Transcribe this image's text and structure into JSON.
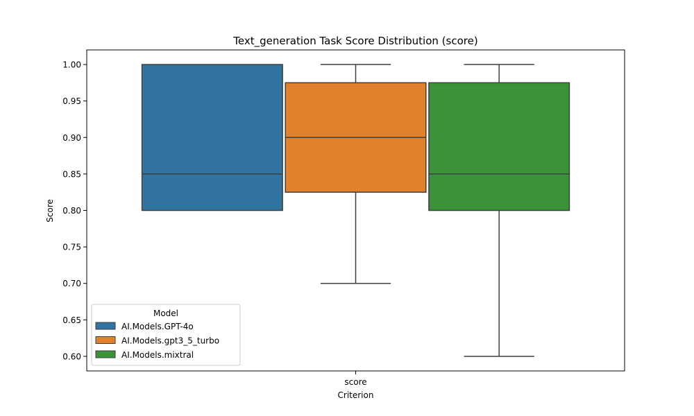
{
  "chart_data": {
    "type": "box",
    "title": "Text_generation Task Score Distribution (score)",
    "xlabel": "Criterion",
    "ylabel": "Score",
    "categories": [
      "score"
    ],
    "ylim": [
      0.58,
      1.02
    ],
    "yticks": [
      "0.60",
      "0.65",
      "0.70",
      "0.75",
      "0.80",
      "0.85",
      "0.90",
      "0.95",
      "1.00"
    ],
    "legend": {
      "title": "Model",
      "placement": "lower-left"
    },
    "series": [
      {
        "name": "AI.Models.GPT-4o",
        "color": "#3274a1",
        "whisker_low": 0.8,
        "q1": 0.8,
        "median": 0.85,
        "q3": 1.0,
        "whisker_high": 1.0
      },
      {
        "name": "AI.Models.gpt3_5_turbo",
        "color": "#e1812c",
        "whisker_low": 0.7,
        "q1": 0.825,
        "median": 0.9,
        "q3": 0.975,
        "whisker_high": 1.0
      },
      {
        "name": "AI.Models.mixtral",
        "color": "#3a923a",
        "whisker_low": 0.6,
        "q1": 0.8,
        "median": 0.85,
        "q3": 0.975,
        "whisker_high": 1.0
      }
    ]
  }
}
